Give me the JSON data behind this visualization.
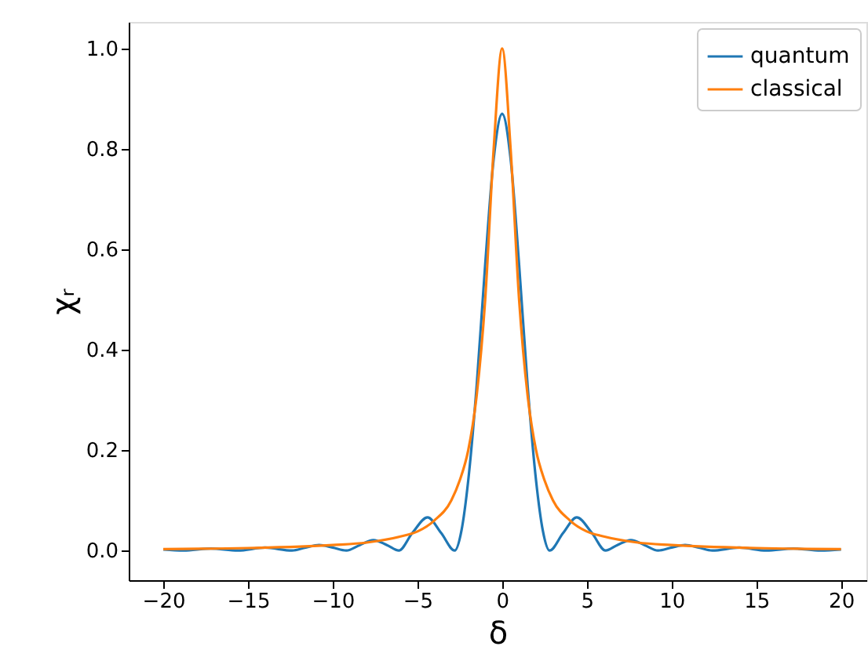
{
  "chart_data": {
    "type": "line",
    "xlabel": "δ",
    "ylabel": "χᵣ",
    "xlim": [
      -22.04,
      21.5
    ],
    "ylim": [
      -0.059,
      1.053
    ],
    "xticks": [
      {
        "value": -20,
        "label": "−20"
      },
      {
        "value": -15,
        "label": "−15"
      },
      {
        "value": -10,
        "label": "−10"
      },
      {
        "value": -5,
        "label": "−5"
      },
      0,
      5,
      10,
      15,
      20
    ],
    "yticks": [
      {
        "value": 0,
        "label": "0.0"
      },
      {
        "value": 0.2,
        "label": "0.2"
      },
      {
        "value": 0.4,
        "label": "0.4"
      },
      {
        "value": 0.6,
        "label": "0.6"
      },
      {
        "value": 0.8,
        "label": "0.8"
      },
      {
        "value": 1,
        "label": "1.0"
      }
    ],
    "grid": false,
    "legend": "top right",
    "marker": "none",
    "line_style": "solid",
    "series": [
      {
        "name": "quantum",
        "color": "#1f77b4",
        "x": [
          -20,
          -18.8,
          -17.2,
          -15.6,
          -14.0,
          -12.4,
          -11.6,
          -10.8,
          -10.0,
          -9.2,
          -8.4,
          -7.6,
          -6.8,
          -6.1,
          -5.3,
          -4.4,
          -3.6,
          -2.8,
          -2.4,
          -2.0,
          -1.5,
          -1.0,
          -0.5,
          0,
          0.5,
          1.0,
          1.5,
          2.0,
          2.4,
          2.8,
          3.6,
          4.4,
          5.3,
          6.1,
          6.8,
          7.6,
          8.4,
          9.2,
          10.0,
          10.8,
          11.6,
          12.4,
          14.0,
          15.6,
          17.2,
          18.8,
          20
        ],
        "values": [
          0.002,
          0,
          0.004,
          0,
          0.006,
          0,
          0.006,
          0.011,
          0.006,
          0,
          0.011,
          0.021,
          0.011,
          0,
          0.035,
          0.066,
          0.035,
          0,
          0.04,
          0.14,
          0.33,
          0.57,
          0.78,
          0.87,
          0.78,
          0.57,
          0.33,
          0.14,
          0.04,
          0,
          0.035,
          0.066,
          0.035,
          0,
          0.011,
          0.021,
          0.011,
          0,
          0.006,
          0.011,
          0.006,
          0,
          0.006,
          0,
          0.004,
          0,
          0.002
        ]
      },
      {
        "name": "classical",
        "color": "#ff7f0e",
        "x": [
          -20,
          -15,
          -10,
          -8,
          -6,
          -5,
          -4,
          -3,
          -2.5,
          -2,
          -1.5,
          -1,
          -0.5,
          0,
          0.5,
          1,
          1.5,
          2,
          2.5,
          3,
          4,
          5,
          6,
          8,
          10,
          15,
          20
        ],
        "values": [
          0.003,
          0.005,
          0.011,
          0.016,
          0.028,
          0.038,
          0.06,
          0.1,
          0.14,
          0.2,
          0.31,
          0.5,
          0.8,
          1.0,
          0.8,
          0.5,
          0.31,
          0.2,
          0.14,
          0.1,
          0.06,
          0.038,
          0.028,
          0.016,
          0.011,
          0.005,
          0.003
        ]
      }
    ]
  }
}
